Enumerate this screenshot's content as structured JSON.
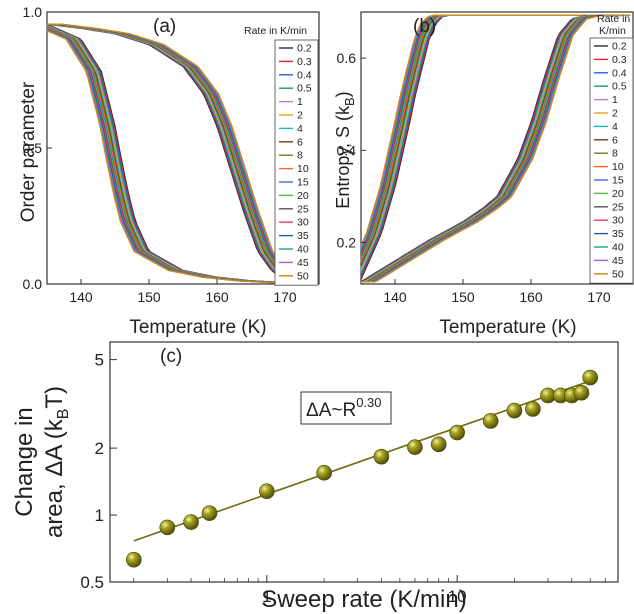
{
  "chart_data": [
    {
      "type": "line",
      "panel_label": "(a)",
      "ylabel": "Order parameter",
      "xlabel": "Temperature (K)",
      "xlim": [
        135,
        175
      ],
      "ylim": [
        0,
        1.0
      ],
      "xticks": [
        140,
        150,
        160,
        170
      ],
      "yticks": [
        0.0,
        0.5,
        1.0
      ],
      "ytick_labels": [
        "0.0",
        "0.5",
        "1.0"
      ],
      "legend": {
        "title_line1": "Rate in K/min",
        "title_line2": "",
        "placement": "right",
        "labels": [
          "0.2",
          "0.3",
          "0.4",
          "0.5",
          "1",
          "2",
          "4",
          "6",
          "8",
          "10",
          "15",
          "20",
          "25",
          "30",
          "35",
          "40",
          "45",
          "50"
        ],
        "colors": [
          "#2b2b2b",
          "#e8222a",
          "#2266cc",
          "#1a9e5a",
          "#b07fd8",
          "#e3a21a",
          "#1fb5c9",
          "#7a3a1a",
          "#6f7f1a",
          "#ff6a1a",
          "#3a6fd8",
          "#4fbf3a",
          "#555555",
          "#e63e6d",
          "#2a55b0",
          "#1aa884",
          "#a85fd0",
          "#cc8a10"
        ]
      },
      "series_description": "cooling branch (left) and heating branch (right) for each sweep rate",
      "series": [
        {
          "branch": "cooling",
          "x": [
            135,
            140,
            143,
            145,
            146,
            147,
            148,
            150,
            155,
            160,
            165,
            170,
            175
          ],
          "y": [
            0.955,
            0.9,
            0.78,
            0.58,
            0.45,
            0.33,
            0.23,
            0.12,
            0.05,
            0.025,
            0.012,
            0.005,
            0.002
          ]
        },
        {
          "branch": "heating",
          "x": [
            135,
            140,
            145,
            150,
            155,
            158,
            160,
            162,
            164,
            166,
            168,
            170,
            175
          ],
          "y": [
            0.955,
            0.94,
            0.92,
            0.88,
            0.8,
            0.7,
            0.58,
            0.42,
            0.26,
            0.12,
            0.05,
            0.015,
            0.003
          ]
        }
      ]
    },
    {
      "type": "line",
      "panel_label": "(b)",
      "ylabel_main": "Entropy, S (k",
      "ylabel_sub": "B",
      "ylabel_end": ")",
      "xlabel": "Temperature (K)",
      "xlim": [
        135,
        175
      ],
      "ylim": [
        0.11,
        0.7
      ],
      "xticks": [
        140,
        150,
        160,
        170
      ],
      "yticks": [
        0.2,
        0.4,
        0.6
      ],
      "ytick_labels": [
        "0.2",
        "0.4",
        "0.6"
      ],
      "legend": {
        "title_line1": "Rate in",
        "title_line2": "K/min",
        "placement": "right",
        "labels": [
          "0.2",
          "0.3",
          "0.4",
          "0.5",
          "1",
          "2",
          "4",
          "6",
          "8",
          "10",
          "15",
          "20",
          "25",
          "30",
          "35",
          "40",
          "45",
          "50"
        ]
      },
      "series": [
        {
          "branch": "cooling",
          "x": [
            135,
            138,
            140,
            142,
            143,
            144,
            145,
            146,
            147,
            148,
            175
          ],
          "y": [
            0.12,
            0.22,
            0.32,
            0.45,
            0.52,
            0.58,
            0.64,
            0.675,
            0.69,
            0.693,
            0.693
          ]
        },
        {
          "branch": "heating",
          "x": [
            135,
            140,
            145,
            150,
            153,
            155,
            158,
            160,
            162,
            164,
            166,
            168,
            175
          ],
          "y": [
            0.115,
            0.16,
            0.205,
            0.245,
            0.275,
            0.3,
            0.38,
            0.46,
            0.56,
            0.65,
            0.685,
            0.692,
            0.693
          ]
        }
      ]
    },
    {
      "type": "scatter",
      "panel_label": "(c)",
      "ylabel_line1": "Change in",
      "ylabel_line2_main": "area, ΔA (k",
      "ylabel_line2_sub": "B",
      "ylabel_line2_end": "T)",
      "xlabel": "Sweep rate (K/min)",
      "xscale": "log",
      "yscale": "log",
      "xlim": [
        0.15,
        70
      ],
      "ylim": [
        0.5,
        6
      ],
      "xticks": [
        1,
        10
      ],
      "xtick_labels": [
        "1",
        "10"
      ],
      "yticks": [
        0.5,
        1,
        2,
        5
      ],
      "ytick_labels": [
        "0.5",
        "1",
        "2",
        "5"
      ],
      "annotation": {
        "base": "ΔA~R",
        "exponent": "0.30"
      },
      "points": {
        "x": [
          0.2,
          0.3,
          0.4,
          0.5,
          1,
          2,
          4,
          6,
          8,
          10,
          15,
          20,
          25,
          30,
          35,
          40,
          45,
          50
        ],
        "y": [
          0.63,
          0.88,
          0.93,
          1.02,
          1.28,
          1.55,
          1.83,
          2.02,
          2.08,
          2.35,
          2.65,
          2.95,
          3.0,
          3.45,
          3.45,
          3.45,
          3.55,
          4.15
        ]
      },
      "fit": {
        "exponent": 0.3,
        "prefactor": 1.24
      },
      "marker_color": "#7d7a10",
      "line_color": "#6e6b10"
    }
  ]
}
